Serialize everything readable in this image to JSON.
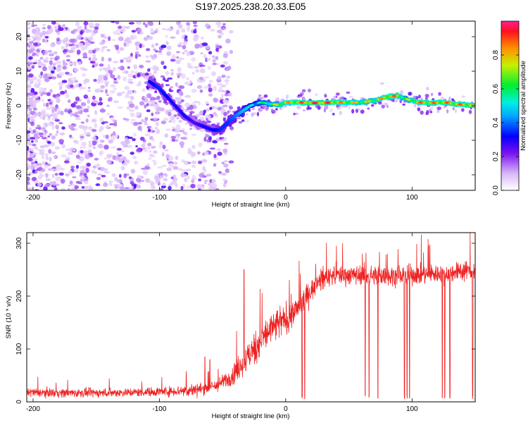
{
  "title": "S197.2025.238.20.33.E05",
  "colors": {
    "snr_line": "#ee2222",
    "scatter_strong": "#6a00e0",
    "scatter_weak": "#c7aaf0"
  },
  "chart_data": [
    {
      "type": "heatmap",
      "name": "spectrogram",
      "xlabel": "Height of straight line (km)",
      "ylabel": "Frequency (Hz)",
      "xlim": [
        -205,
        150
      ],
      "ylim": [
        -24.5,
        24.5
      ],
      "xticks": [
        -200,
        -100,
        0,
        100
      ],
      "xtick_labels": [
        "-200",
        "-100",
        "0",
        "100"
      ],
      "yticks": [
        -20,
        -10,
        0,
        10,
        20
      ],
      "ytick_labels": [
        "-20",
        "-10",
        "0",
        "10",
        "20"
      ],
      "colorbar": {
        "label": "Normalized spectral amplitude",
        "range": [
          0.0,
          1.0
        ],
        "ticks": [
          0.0,
          0.2,
          0.4,
          0.6,
          0.8
        ],
        "tick_labels": [
          "0.0",
          "0.2",
          "0.4",
          "0.6",
          "0.8"
        ]
      },
      "ridge": {
        "description": "frequency trace of dominant spectral peak",
        "x": [
          -108,
          -100,
          -90,
          -80,
          -72,
          -65,
          -58,
          -52,
          -46,
          -40,
          -34,
          -28,
          -20,
          -12,
          -5,
          0,
          10,
          20,
          30,
          40,
          50,
          60,
          70,
          80,
          88,
          95,
          105,
          115,
          125,
          135,
          145,
          150
        ],
        "y": [
          7,
          5,
          1,
          -3,
          -5,
          -6,
          -7,
          -7,
          -5,
          -3,
          -1.5,
          0,
          1,
          0.5,
          0.2,
          1,
          1,
          0.8,
          0.8,
          1,
          1,
          1,
          1.5,
          2.5,
          3,
          2,
          1,
          0.8,
          1,
          0.5,
          0.2,
          0
        ],
        "amplitude": [
          0.3,
          0.35,
          0.3,
          0.3,
          0.25,
          0.3,
          0.3,
          0.35,
          0.35,
          0.4,
          0.45,
          0.5,
          0.6,
          0.7,
          0.8,
          0.85,
          0.9,
          0.95,
          1.0,
          0.9,
          0.85,
          0.8,
          0.8,
          0.9,
          0.9,
          0.7,
          0.9,
          0.9,
          0.9,
          0.9,
          0.9,
          0.8
        ]
      },
      "noise_region": {
        "x_range": [
          -205,
          -55
        ],
        "y_range": [
          -24.5,
          24.5
        ],
        "amplitude": [
          0.05,
          0.3
        ]
      }
    },
    {
      "type": "line",
      "name": "snr",
      "xlabel": "Height of straight line (km)",
      "ylabel": "SNR (10 * v/v)",
      "xlim": [
        -205,
        150
      ],
      "ylim": [
        0,
        320
      ],
      "xticks": [
        -200,
        -100,
        0,
        100
      ],
      "xtick_labels": [
        "-200",
        "-100",
        "0",
        "100"
      ],
      "yticks": [
        0,
        100,
        200,
        300
      ],
      "ytick_labels": [
        "0",
        "100",
        "200",
        "300"
      ],
      "envelope": {
        "x": [
          -205,
          -180,
          -150,
          -120,
          -90,
          -75,
          -65,
          -55,
          -45,
          -35,
          -25,
          -15,
          -5,
          0,
          5,
          10,
          15,
          20,
          25,
          30,
          40,
          50,
          60,
          80,
          100,
          120,
          140,
          150
        ],
        "mean": [
          18,
          17,
          17,
          18,
          20,
          22,
          25,
          30,
          45,
          70,
          100,
          130,
          150,
          155,
          165,
          180,
          195,
          210,
          225,
          235,
          240,
          240,
          240,
          238,
          240,
          242,
          248,
          250
        ],
        "noise": [
          9,
          9,
          9,
          9,
          10,
          14,
          12,
          12,
          18,
          28,
          35,
          35,
          35,
          30,
          30,
          28,
          25,
          22,
          22,
          22,
          20,
          20,
          20,
          20,
          20,
          20,
          20,
          20
        ]
      },
      "dropouts_x": [
        13,
        15,
        63,
        66,
        73,
        94,
        96,
        98,
        124,
        126,
        130,
        148
      ],
      "dropouts_min": 5,
      "spikes": [
        {
          "x": -64,
          "y": 85
        },
        {
          "x": -33,
          "y": 250
        },
        {
          "x": -60,
          "y": 80
        },
        {
          "x": 45,
          "y": 300
        },
        {
          "x": 146,
          "y": 320
        }
      ]
    }
  ]
}
